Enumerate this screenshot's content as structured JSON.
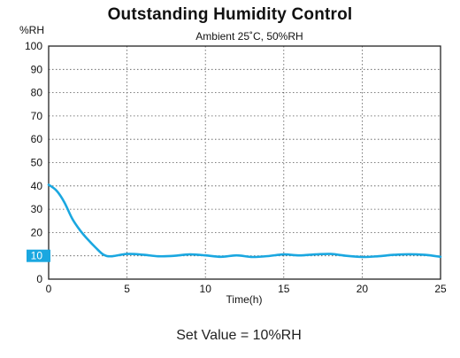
{
  "chart_data": {
    "type": "line",
    "title": "Outstanding Humidity Control",
    "subtitle": "Ambient 25˚C, 50%RH",
    "xlabel": "Time(h)",
    "ylabel": "%RH",
    "xlim": [
      0,
      25
    ],
    "ylim": [
      0,
      100
    ],
    "x_ticks": [
      "0",
      "5",
      "10",
      "15",
      "20",
      "25"
    ],
    "y_ticks": [
      "0",
      "10",
      "20",
      "30",
      "40",
      "50",
      "60",
      "70",
      "80",
      "90",
      "100"
    ],
    "highlighted_y_tick": "10",
    "grid": true,
    "line_color": "#1aa7e0",
    "series": [
      {
        "x": [
          0,
          0.5,
          1,
          1.5,
          2,
          2.5,
          3,
          3.5,
          4,
          5,
          6,
          7,
          8,
          9,
          10,
          11,
          12,
          13,
          14,
          15,
          16,
          17,
          18,
          19,
          20,
          21,
          22,
          23,
          24,
          25
        ],
        "y": [
          40.5,
          38,
          33,
          26,
          21,
          17,
          13.5,
          10.5,
          9.8,
          10.8,
          10.5,
          9.8,
          10,
          10.6,
          10.2,
          9.6,
          10.2,
          9.5,
          9.9,
          10.6,
          10.2,
          10.6,
          10.8,
          10,
          9.5,
          9.8,
          10.4,
          10.7,
          10.4,
          9.6
        ]
      }
    ]
  },
  "footer": {
    "set_value": "Set Value = 10%RH"
  }
}
